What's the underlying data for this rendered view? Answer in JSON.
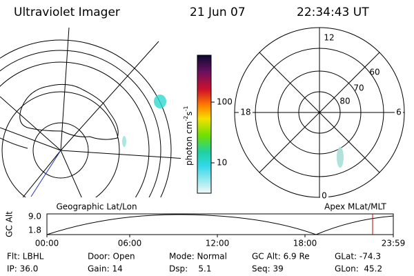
{
  "header": {
    "title": "Ultraviolet Imager",
    "date": "21 Jun 07",
    "time": "22:34:43 UT"
  },
  "colorbar": {
    "label": [
      "photon cm",
      "-2",
      "s",
      "-1"
    ],
    "ticks": [
      "100",
      "10"
    ]
  },
  "polar_plot": {
    "mlt_labels": [
      "12",
      "18",
      "6",
      "0"
    ],
    "mlat_labels": [
      "60",
      "70",
      "80"
    ]
  },
  "altitude_strip": {
    "left_title": "Geographic Lat/Lon",
    "right_title": "Apex MLat/MLT",
    "y_label": "GC Alt",
    "y_ticks": [
      "9.0",
      "1.8"
    ],
    "x_ticks": [
      "00:00",
      "06:00",
      "12:00",
      "18:00",
      "23:59"
    ]
  },
  "status": {
    "rows": [
      [
        "Flt: LBHL",
        "Door: Open",
        "Mode: Normal",
        "GC Alt: 6.9 Re",
        "GLat: -74.3"
      ],
      [
        "IP: 36.0",
        "Gain: 14",
        "Dsp:    5.1",
        "Seq: 39",
        "GLon:  45.2"
      ]
    ]
  }
}
